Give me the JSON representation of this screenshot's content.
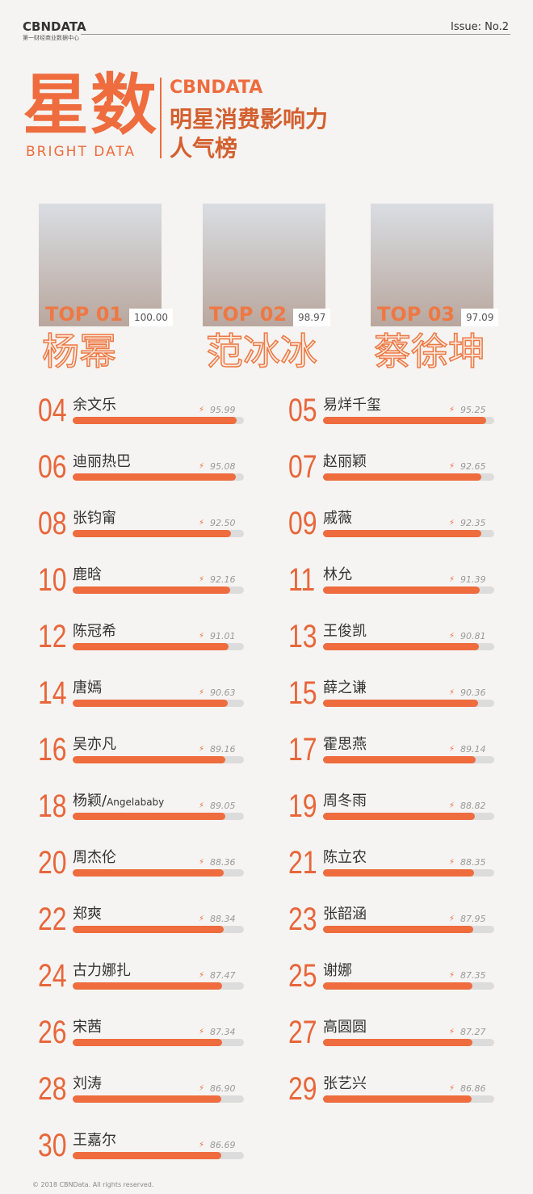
{
  "header": {
    "brand": "CBNDATA",
    "brand_sub": "第一财经商业数据中心",
    "issue": "Issue: No.2"
  },
  "title": {
    "main": "星数",
    "english": "BRIGHT DATA",
    "logo": "CBNDATA",
    "lines": [
      "明星消费影响力",
      "人气榜"
    ]
  },
  "top3": [
    {
      "rank": "TOP 01",
      "score": 100,
      "score_label": "100.00",
      "name": "杨幂"
    },
    {
      "rank": "TOP 02",
      "score": 98.97,
      "name": "范冰冰"
    },
    {
      "rank": "TOP 03",
      "score": 97.09,
      "name": "蔡徐坤"
    }
  ],
  "ranking": [
    {
      "rank": "04",
      "name": "余文乐",
      "score": 95.99
    },
    {
      "rank": "05",
      "name": "易烊千玺",
      "score": 95.25
    },
    {
      "rank": "06",
      "name": "迪丽热巴",
      "score": 95.08
    },
    {
      "rank": "07",
      "name": "赵丽颖",
      "score": 92.65
    },
    {
      "rank": "08",
      "name": "张钧甯",
      "score": 92.5,
      "score_label": "92.50"
    },
    {
      "rank": "09",
      "name": "戚薇",
      "score": 92.35
    },
    {
      "rank": "10",
      "name": "鹿晗",
      "score": 92.16
    },
    {
      "rank": "11",
      "name": "林允",
      "score": 91.39
    },
    {
      "rank": "12",
      "name": "陈冠希",
      "score": 91.01
    },
    {
      "rank": "13",
      "name": "王俊凯",
      "score": 90.81
    },
    {
      "rank": "14",
      "name": "唐嫣",
      "score": 90.63
    },
    {
      "rank": "15",
      "name": "薛之谦",
      "score": 90.36
    },
    {
      "rank": "16",
      "name": "吴亦凡",
      "score": 89.16
    },
    {
      "rank": "17",
      "name": "霍思燕",
      "score": 89.14
    },
    {
      "rank": "18",
      "name": "杨颖/Angelababy",
      "score": 89.05
    },
    {
      "rank": "19",
      "name": "周冬雨",
      "score": 88.82
    },
    {
      "rank": "20",
      "name": "周杰伦",
      "score": 88.36
    },
    {
      "rank": "21",
      "name": "陈立农",
      "score": 88.35
    },
    {
      "rank": "22",
      "name": "郑爽",
      "score": 88.34
    },
    {
      "rank": "23",
      "name": "张韶涵",
      "score": 87.95
    },
    {
      "rank": "24",
      "name": "古力娜扎",
      "score": 87.47
    },
    {
      "rank": "25",
      "name": "谢娜",
      "score": 87.35
    },
    {
      "rank": "26",
      "name": "宋茜",
      "score": 87.34
    },
    {
      "rank": "27",
      "name": "高圆圆",
      "score": 87.27
    },
    {
      "rank": "28",
      "name": "刘涛",
      "score": 86.9,
      "score_label": "86.90"
    },
    {
      "rank": "29",
      "name": "张艺兴",
      "score": 86.86
    },
    {
      "rank": "30",
      "name": "王嘉尔",
      "score": 86.69
    }
  ],
  "footer": "© 2018 CBNData. All rights reserved."
}
